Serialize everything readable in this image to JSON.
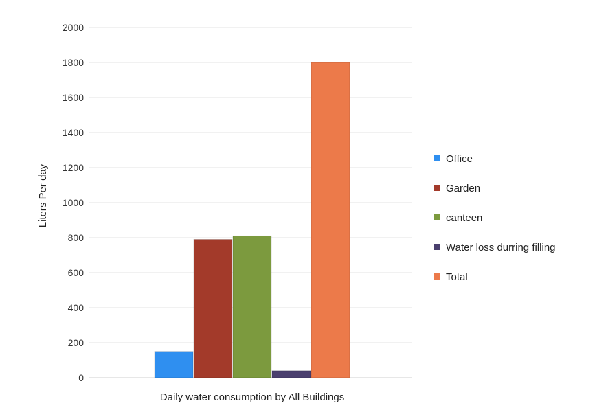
{
  "chart_data": {
    "type": "bar",
    "title": "",
    "xlabel": "Daily water consumption by All Buildings",
    "ylabel": "Liters Per day",
    "ylim": [
      0,
      2000
    ],
    "yticks": [
      0,
      200,
      400,
      600,
      800,
      1000,
      1200,
      1400,
      1600,
      1800,
      2000
    ],
    "grid": true,
    "legend_position": "right",
    "categories": [
      "Daily water consumption by All Buildings"
    ],
    "series": [
      {
        "name": "Office",
        "values": [
          150
        ],
        "color": "#2f8ff0"
      },
      {
        "name": "Garden",
        "values": [
          790
        ],
        "color": "#a33a2a"
      },
      {
        "name": "canteen",
        "values": [
          810
        ],
        "color": "#7c9a3e"
      },
      {
        "name": "Water loss durring filling",
        "values": [
          40
        ],
        "color": "#4a3f6e"
      },
      {
        "name": "Total",
        "values": [
          1800
        ],
        "color": "#ec7a4a"
      }
    ]
  }
}
